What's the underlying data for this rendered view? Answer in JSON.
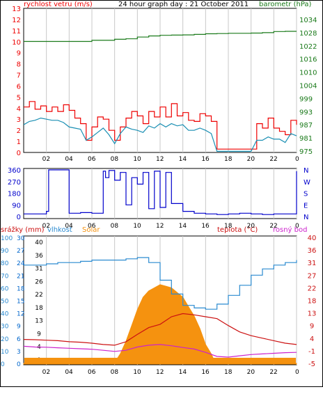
{
  "header": {
    "title": "24 hour graph day : 21 October 2011",
    "wind_label": "rychlost vetru (m/s)",
    "baro_label": "barometr (hPa)"
  },
  "colors": {
    "wind_gust": "#ee0000",
    "wind_avg": "#1a8fb3",
    "pressure": "#1a7a1a",
    "direction": "#0000cc",
    "humidity": "#2a8ad0",
    "solar": "#f5920f",
    "temperature": "#cc1111",
    "dewpoint": "#cc22cc",
    "rain": "#0066cc",
    "grid": "#c8c8c8",
    "frame": "#000000"
  },
  "chart_data": [
    {
      "type": "line",
      "title": "24 hour graph day : 21 October 2011",
      "x_ticks": [
        "02",
        "04",
        "06",
        "08",
        "10",
        "12",
        "14",
        "16",
        "18",
        "20",
        "22",
        "0"
      ],
      "y_left_label": "rychlost vetru (m/s)",
      "y_left_ticks": [
        0,
        1,
        2,
        3,
        4,
        5,
        6,
        7,
        8,
        9,
        10,
        11,
        12,
        13
      ],
      "y_right_label": "barometr (hPa)",
      "y_right_ticks": [
        975,
        981,
        987,
        993,
        999,
        1004,
        1010,
        1016,
        1022,
        1028,
        1034
      ],
      "ylim_left": [
        0,
        13
      ],
      "series": [
        {
          "name": "wind_gust",
          "axis": "left",
          "x": [
            0,
            0.5,
            1,
            1.5,
            2,
            2.5,
            3,
            3.5,
            4,
            4.5,
            5,
            5.5,
            6,
            6.5,
            7,
            7.5,
            8,
            8.5,
            9,
            9.5,
            10,
            10.5,
            11,
            11.5,
            12,
            12.5,
            13,
            13.5,
            14,
            14.5,
            15,
            15.5,
            16,
            16.5,
            17,
            17.5,
            18,
            18.5,
            19,
            19.5,
            20,
            20.5,
            21,
            21.5,
            22,
            22.5,
            23,
            23.5,
            24
          ],
          "values": [
            4.1,
            4.6,
            3.9,
            4.2,
            3.7,
            4.1,
            3.7,
            4.3,
            3.8,
            3.1,
            2.6,
            1.1,
            2.3,
            3.2,
            3.0,
            2.0,
            1.1,
            2.3,
            3.1,
            3.7,
            3.3,
            2.6,
            3.7,
            3.2,
            4.1,
            3.2,
            4.4,
            3.3,
            3.6,
            2.9,
            2.8,
            3.5,
            3.3,
            2.8,
            0.3,
            0.3,
            0.3,
            0.3,
            0.3,
            0.3,
            0.3,
            2.6,
            2.2,
            3.1,
            2.2,
            1.9,
            1.6,
            2.9,
            2.5
          ]
        },
        {
          "name": "wind_avg",
          "axis": "left",
          "x": [
            0,
            0.5,
            1,
            1.5,
            2,
            2.5,
            3,
            3.5,
            4,
            4.5,
            5,
            5.5,
            6,
            6.5,
            7,
            7.5,
            8,
            8.5,
            9,
            9.5,
            10,
            10.5,
            11,
            11.5,
            12,
            12.5,
            13,
            13.5,
            14,
            14.5,
            15,
            15.5,
            16,
            16.5,
            17,
            17.5,
            18,
            18.5,
            19,
            19.5,
            20,
            20.5,
            21,
            21.5,
            22,
            22.5,
            23,
            23.5,
            24
          ],
          "values": [
            2.5,
            2.8,
            2.9,
            3.1,
            3.0,
            2.9,
            2.9,
            2.7,
            2.3,
            2.2,
            2.1,
            1.1,
            1.4,
            1.8,
            2.2,
            1.6,
            0.8,
            1.7,
            2.3,
            2.1,
            2.0,
            1.8,
            2.4,
            2.2,
            2.6,
            2.3,
            2.6,
            2.4,
            2.5,
            2.0,
            2.0,
            2.2,
            2.0,
            1.7,
            0.1,
            0.1,
            0.1,
            0.1,
            0.1,
            0.1,
            0.1,
            1.1,
            1.1,
            1.4,
            1.2,
            1.2,
            0.9,
            1.7,
            1.5
          ]
        },
        {
          "name": "pressure",
          "axis": "right",
          "x": [
            0,
            2,
            4,
            5,
            6,
            8,
            9,
            10,
            11,
            12,
            13,
            14,
            15,
            16,
            17,
            18,
            19,
            20,
            21,
            22,
            23,
            24
          ],
          "values": [
            1024.0,
            1024.0,
            1024.0,
            1024.0,
            1024.5,
            1025.0,
            1025.2,
            1026.0,
            1026.5,
            1026.8,
            1026.9,
            1027.0,
            1027.2,
            1027.5,
            1027.6,
            1027.7,
            1027.7,
            1027.8,
            1028.0,
            1028.5,
            1028.6,
            1028.6
          ]
        }
      ]
    },
    {
      "type": "line",
      "x_ticks": [
        "02",
        "04",
        "06",
        "08",
        "10",
        "12",
        "14",
        "16",
        "18",
        "20",
        "22",
        "0"
      ],
      "y_left_ticks": [
        0,
        90,
        180,
        270,
        360
      ],
      "y_right_ticks": [
        "N",
        "E",
        "S",
        "W",
        "N"
      ],
      "ylim_left": [
        0,
        360
      ],
      "series": [
        {
          "name": "wind_direction",
          "x": [
            0,
            2,
            2.2,
            4,
            5,
            6,
            7,
            7.2,
            7.5,
            8,
            8.5,
            9,
            9.5,
            10,
            10.5,
            11,
            11.5,
            12,
            12.5,
            13,
            14,
            15,
            16,
            17,
            18,
            19,
            20,
            21,
            22,
            23,
            24
          ],
          "values": [
            20,
            40,
            360,
            25,
            30,
            25,
            350,
            300,
            355,
            280,
            340,
            90,
            300,
            250,
            340,
            60,
            350,
            70,
            340,
            100,
            40,
            25,
            20,
            15,
            20,
            25,
            20,
            15,
            20,
            20,
            350
          ]
        }
      ]
    },
    {
      "type": "line",
      "x_ticks": [
        "02",
        "04",
        "06",
        "08",
        "10",
        "12",
        "14",
        "16",
        "18",
        "20",
        "22",
        "0"
      ],
      "legend": [
        "srážky (mm)",
        "vlhkost",
        "Solar",
        "teplota (°C)",
        "rosný bod"
      ],
      "y_rain_ticks": [
        0,
        3,
        6,
        9,
        12,
        15,
        18,
        21,
        24,
        27,
        30
      ],
      "y_humidity_ticks": [
        0,
        10,
        20,
        30,
        40,
        50,
        60,
        70,
        80,
        90,
        100
      ],
      "y_solar_ticks": [
        0,
        4,
        9,
        13,
        18,
        22,
        26,
        31,
        36,
        40
      ],
      "y_temp_ticks": [
        -5,
        -1,
        4,
        9,
        13,
        18,
        22,
        27,
        31,
        36,
        40
      ],
      "ylim_temp": [
        -5,
        40
      ],
      "series": [
        {
          "name": "vlhkost",
          "axis": "humidity",
          "x": [
            0,
            1,
            2,
            3,
            4,
            5,
            6,
            7,
            8,
            9,
            10,
            11,
            12,
            13,
            14,
            15,
            16,
            17,
            18,
            19,
            20,
            21,
            22,
            23,
            24
          ],
          "values": [
            78,
            78,
            79,
            80,
            80,
            81,
            82,
            82,
            82,
            83,
            84,
            80,
            66,
            55,
            46,
            44,
            43,
            47,
            54,
            62,
            70,
            75,
            78,
            80,
            82
          ]
        },
        {
          "name": "teplota",
          "axis": "temp",
          "x": [
            0,
            1,
            2,
            3,
            4,
            5,
            6,
            7,
            8,
            9,
            10,
            11,
            12,
            13,
            14,
            15,
            16,
            17,
            18,
            19,
            20,
            21,
            22,
            23,
            24
          ],
          "values": [
            3.5,
            3.4,
            3.2,
            3.0,
            2.6,
            2.4,
            2.0,
            1.5,
            1.2,
            2.6,
            5.5,
            8.2,
            9.4,
            11.8,
            12.8,
            12.4,
            11.8,
            11.2,
            9.0,
            6.5,
            5.0,
            4.0,
            3.0,
            2.0,
            1.5
          ]
        },
        {
          "name": "rosný bod",
          "axis": "temp",
          "x": [
            0,
            1,
            2,
            3,
            4,
            5,
            6,
            7,
            8,
            9,
            10,
            11,
            12,
            13,
            14,
            15,
            16,
            17,
            18,
            19,
            20,
            21,
            22,
            23,
            24
          ],
          "values": [
            0.8,
            0.5,
            0.4,
            0.2,
            0.0,
            -0.2,
            -0.4,
            -0.8,
            -1.2,
            -0.8,
            0.5,
            1.2,
            1.5,
            1.0,
            0.3,
            -0.3,
            -1.5,
            -2.8,
            -3.0,
            -2.6,
            -2.2,
            -2.0,
            -1.8,
            -1.6,
            -1.5
          ]
        },
        {
          "name": "Solar",
          "axis": "solar",
          "x": [
            0,
            7.9,
            8,
            8.5,
            9,
            9.5,
            10,
            10.5,
            11,
            11.5,
            12,
            12.5,
            13,
            13.5,
            14,
            14.5,
            15,
            15.5,
            16,
            16.5,
            16.8,
            17,
            24
          ],
          "values": [
            0,
            0,
            0.3,
            3,
            7,
            12,
            17,
            21,
            23,
            24,
            25,
            24.5,
            24,
            22.5,
            21,
            18,
            15,
            11,
            6,
            3,
            0.5,
            0,
            0
          ]
        },
        {
          "name": "srážky",
          "axis": "rain",
          "x": [
            0,
            24
          ],
          "values": [
            1,
            1
          ]
        }
      ]
    }
  ]
}
